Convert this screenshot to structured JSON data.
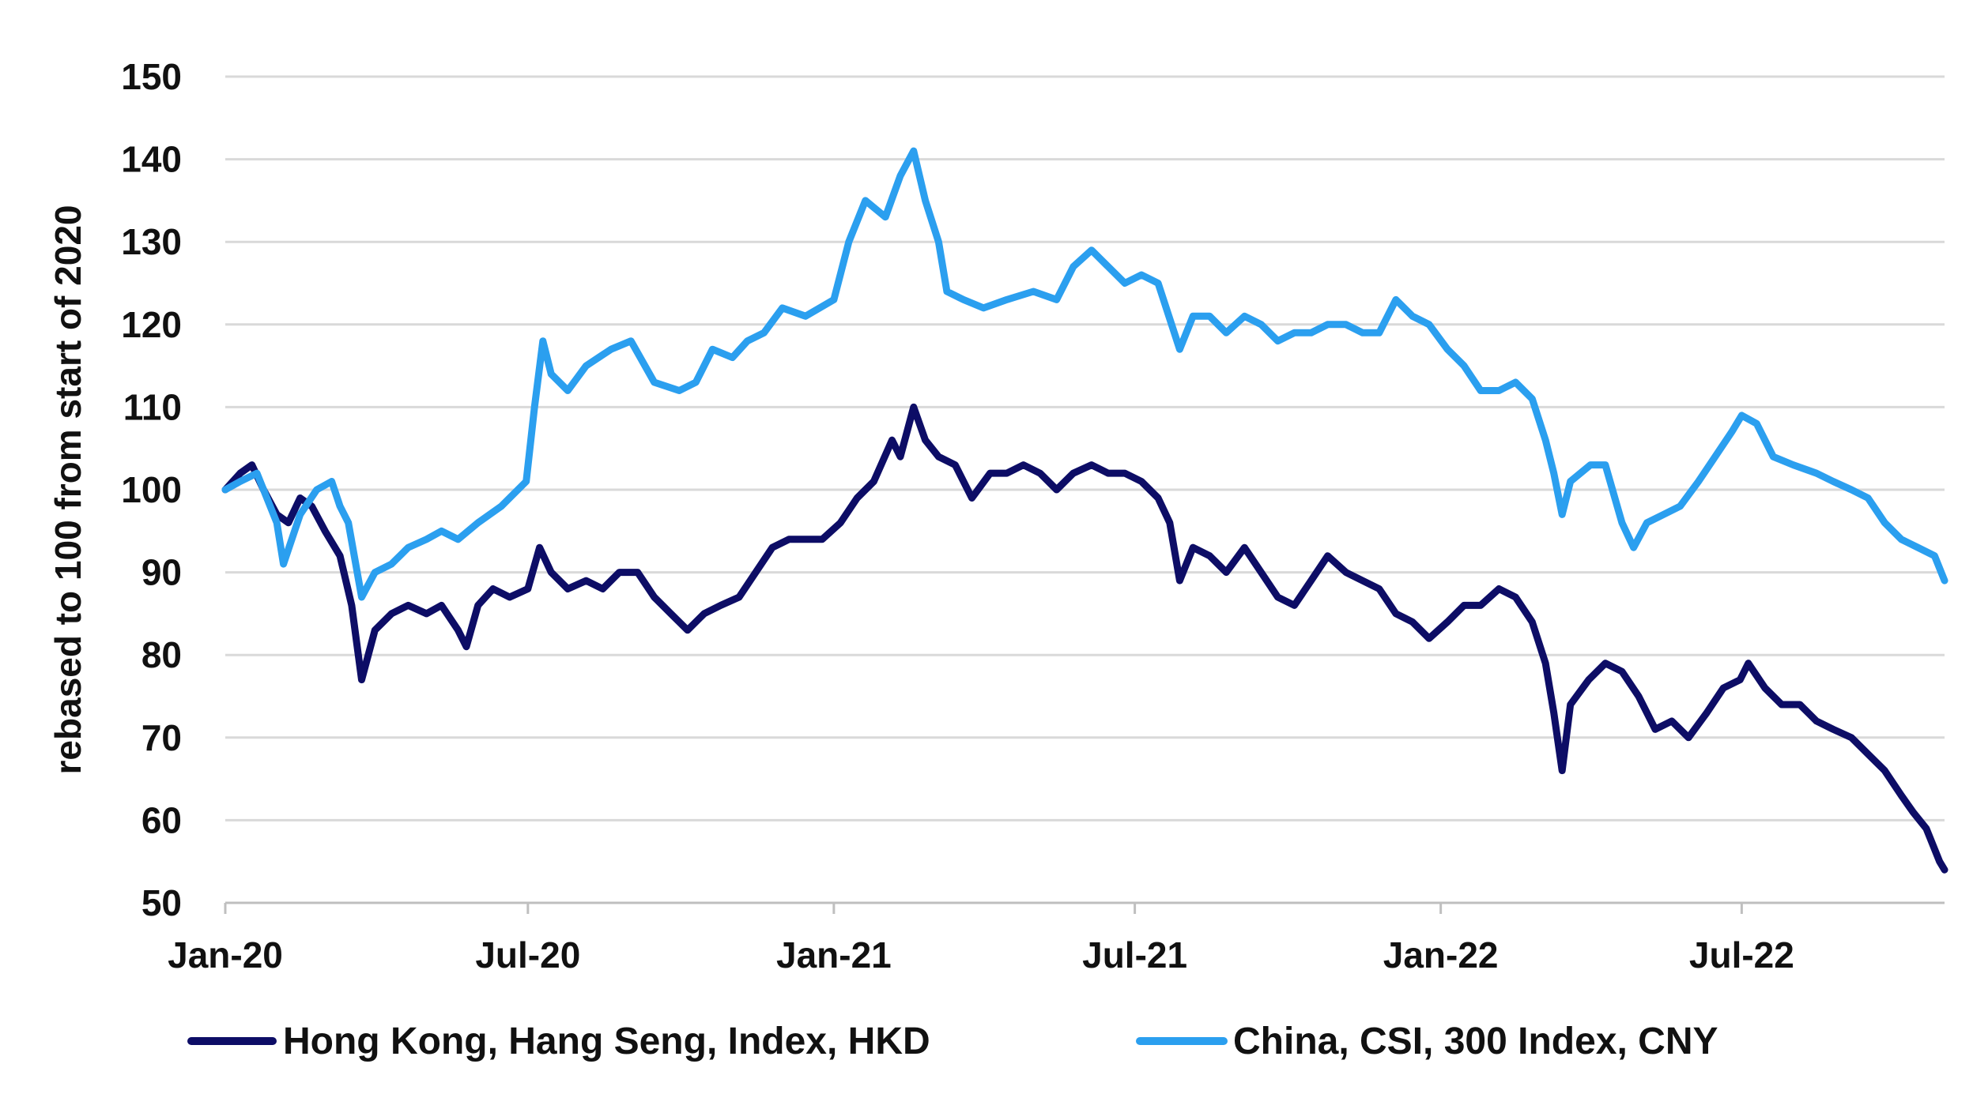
{
  "chart_data": {
    "type": "line",
    "ylabel": "rebased to 100 from start of 2020",
    "ylim": [
      50,
      150
    ],
    "yticks": [
      "50",
      "60",
      "70",
      "80",
      "90",
      "100",
      "110",
      "120",
      "130",
      "140",
      "150"
    ],
    "xlim": [
      "2020-01-01",
      "2022-10-31"
    ],
    "xticks": [
      {
        "date": "2020-01-01",
        "label": "Jan-20"
      },
      {
        "date": "2020-07-01",
        "label": "Jul-20"
      },
      {
        "date": "2021-01-01",
        "label": "Jan-21"
      },
      {
        "date": "2021-07-01",
        "label": "Jul-21"
      },
      {
        "date": "2022-01-01",
        "label": "Jan-22"
      },
      {
        "date": "2022-07-01",
        "label": "Jul-22"
      }
    ],
    "grid": true,
    "legend": "bottom",
    "series": [
      {
        "name": "Hong Kong, Hang Seng, Index, HKD",
        "color": "#0d0d66",
        "points": [
          [
            "2020-01-01",
            100
          ],
          [
            "2020-01-10",
            102
          ],
          [
            "2020-01-17",
            103
          ],
          [
            "2020-01-24",
            100
          ],
          [
            "2020-02-01",
            97
          ],
          [
            "2020-02-08",
            96
          ],
          [
            "2020-02-15",
            99
          ],
          [
            "2020-02-22",
            98
          ],
          [
            "2020-03-01",
            95
          ],
          [
            "2020-03-10",
            92
          ],
          [
            "2020-03-17",
            86
          ],
          [
            "2020-03-23",
            77
          ],
          [
            "2020-03-31",
            83
          ],
          [
            "2020-04-10",
            85
          ],
          [
            "2020-04-20",
            86
          ],
          [
            "2020-05-01",
            85
          ],
          [
            "2020-05-10",
            86
          ],
          [
            "2020-05-20",
            83
          ],
          [
            "2020-05-25",
            81
          ],
          [
            "2020-06-01",
            86
          ],
          [
            "2020-06-10",
            88
          ],
          [
            "2020-06-20",
            87
          ],
          [
            "2020-07-01",
            88
          ],
          [
            "2020-07-08",
            93
          ],
          [
            "2020-07-15",
            90
          ],
          [
            "2020-07-25",
            88
          ],
          [
            "2020-08-05",
            89
          ],
          [
            "2020-08-15",
            88
          ],
          [
            "2020-08-25",
            90
          ],
          [
            "2020-09-05",
            90
          ],
          [
            "2020-09-15",
            87
          ],
          [
            "2020-09-25",
            85
          ],
          [
            "2020-10-05",
            83
          ],
          [
            "2020-10-15",
            85
          ],
          [
            "2020-10-25",
            86
          ],
          [
            "2020-11-05",
            87
          ],
          [
            "2020-11-15",
            90
          ],
          [
            "2020-11-25",
            93
          ],
          [
            "2020-12-05",
            94
          ],
          [
            "2020-12-15",
            94
          ],
          [
            "2020-12-25",
            94
          ],
          [
            "2021-01-05",
            96
          ],
          [
            "2021-01-15",
            99
          ],
          [
            "2021-01-25",
            101
          ],
          [
            "2021-02-05",
            106
          ],
          [
            "2021-02-10",
            104
          ],
          [
            "2021-02-18",
            110
          ],
          [
            "2021-02-25",
            106
          ],
          [
            "2021-03-05",
            104
          ],
          [
            "2021-03-15",
            103
          ],
          [
            "2021-03-25",
            99
          ],
          [
            "2021-04-05",
            102
          ],
          [
            "2021-04-15",
            102
          ],
          [
            "2021-04-25",
            103
          ],
          [
            "2021-05-05",
            102
          ],
          [
            "2021-05-15",
            100
          ],
          [
            "2021-05-25",
            102
          ],
          [
            "2021-06-05",
            103
          ],
          [
            "2021-06-15",
            102
          ],
          [
            "2021-06-25",
            102
          ],
          [
            "2021-07-05",
            101
          ],
          [
            "2021-07-15",
            99
          ],
          [
            "2021-07-22",
            96
          ],
          [
            "2021-07-28",
            89
          ],
          [
            "2021-08-05",
            93
          ],
          [
            "2021-08-15",
            92
          ],
          [
            "2021-08-25",
            90
          ],
          [
            "2021-09-05",
            93
          ],
          [
            "2021-09-15",
            90
          ],
          [
            "2021-09-25",
            87
          ],
          [
            "2021-10-05",
            86
          ],
          [
            "2021-10-15",
            89
          ],
          [
            "2021-10-25",
            92
          ],
          [
            "2021-11-05",
            90
          ],
          [
            "2021-11-15",
            89
          ],
          [
            "2021-11-25",
            88
          ],
          [
            "2021-12-05",
            85
          ],
          [
            "2021-12-15",
            84
          ],
          [
            "2021-12-25",
            82
          ],
          [
            "2022-01-05",
            84
          ],
          [
            "2022-01-15",
            86
          ],
          [
            "2022-01-25",
            86
          ],
          [
            "2022-02-05",
            88
          ],
          [
            "2022-02-15",
            87
          ],
          [
            "2022-02-25",
            84
          ],
          [
            "2022-03-05",
            79
          ],
          [
            "2022-03-10",
            73
          ],
          [
            "2022-03-15",
            66
          ],
          [
            "2022-03-20",
            74
          ],
          [
            "2022-03-31",
            77
          ],
          [
            "2022-04-10",
            79
          ],
          [
            "2022-04-20",
            78
          ],
          [
            "2022-04-30",
            75
          ],
          [
            "2022-05-10",
            71
          ],
          [
            "2022-05-20",
            72
          ],
          [
            "2022-05-30",
            70
          ],
          [
            "2022-06-10",
            73
          ],
          [
            "2022-06-20",
            76
          ],
          [
            "2022-06-30",
            77
          ],
          [
            "2022-07-05",
            79
          ],
          [
            "2022-07-15",
            76
          ],
          [
            "2022-07-25",
            74
          ],
          [
            "2022-08-05",
            74
          ],
          [
            "2022-08-15",
            72
          ],
          [
            "2022-08-25",
            71
          ],
          [
            "2022-09-05",
            70
          ],
          [
            "2022-09-15",
            68
          ],
          [
            "2022-09-25",
            66
          ],
          [
            "2022-10-05",
            63
          ],
          [
            "2022-10-12",
            61
          ],
          [
            "2022-10-20",
            59
          ],
          [
            "2022-10-28",
            55
          ],
          [
            "2022-10-31",
            54
          ]
        ]
      },
      {
        "name": "China, CSI, 300 Index, CNY",
        "color": "#2b9fef",
        "points": [
          [
            "2020-01-01",
            100
          ],
          [
            "2020-01-10",
            101
          ],
          [
            "2020-01-20",
            102
          ],
          [
            "2020-02-01",
            96
          ],
          [
            "2020-02-05",
            91
          ],
          [
            "2020-02-15",
            97
          ],
          [
            "2020-02-25",
            100
          ],
          [
            "2020-03-05",
            101
          ],
          [
            "2020-03-10",
            98
          ],
          [
            "2020-03-15",
            96
          ],
          [
            "2020-03-23",
            87
          ],
          [
            "2020-03-31",
            90
          ],
          [
            "2020-04-10",
            91
          ],
          [
            "2020-04-20",
            93
          ],
          [
            "2020-05-01",
            94
          ],
          [
            "2020-05-10",
            95
          ],
          [
            "2020-05-20",
            94
          ],
          [
            "2020-06-01",
            96
          ],
          [
            "2020-06-15",
            98
          ],
          [
            "2020-06-30",
            101
          ],
          [
            "2020-07-05",
            110
          ],
          [
            "2020-07-10",
            118
          ],
          [
            "2020-07-15",
            114
          ],
          [
            "2020-07-25",
            112
          ],
          [
            "2020-08-05",
            115
          ],
          [
            "2020-08-20",
            117
          ],
          [
            "2020-09-01",
            118
          ],
          [
            "2020-09-15",
            113
          ],
          [
            "2020-09-30",
            112
          ],
          [
            "2020-10-10",
            113
          ],
          [
            "2020-10-20",
            117
          ],
          [
            "2020-11-01",
            116
          ],
          [
            "2020-11-10",
            118
          ],
          [
            "2020-11-20",
            119
          ],
          [
            "2020-12-01",
            122
          ],
          [
            "2020-12-15",
            121
          ],
          [
            "2021-01-01",
            123
          ],
          [
            "2021-01-10",
            130
          ],
          [
            "2021-01-20",
            135
          ],
          [
            "2021-02-01",
            133
          ],
          [
            "2021-02-10",
            138
          ],
          [
            "2021-02-18",
            141
          ],
          [
            "2021-02-25",
            135
          ],
          [
            "2021-03-05",
            130
          ],
          [
            "2021-03-10",
            124
          ],
          [
            "2021-03-20",
            123
          ],
          [
            "2021-04-01",
            122
          ],
          [
            "2021-04-15",
            123
          ],
          [
            "2021-05-01",
            124
          ],
          [
            "2021-05-15",
            123
          ],
          [
            "2021-05-25",
            127
          ],
          [
            "2021-06-05",
            129
          ],
          [
            "2021-06-15",
            127
          ],
          [
            "2021-06-25",
            125
          ],
          [
            "2021-07-05",
            126
          ],
          [
            "2021-07-15",
            125
          ],
          [
            "2021-07-28",
            117
          ],
          [
            "2021-08-05",
            121
          ],
          [
            "2021-08-15",
            121
          ],
          [
            "2021-08-25",
            119
          ],
          [
            "2021-09-05",
            121
          ],
          [
            "2021-09-15",
            120
          ],
          [
            "2021-09-25",
            118
          ],
          [
            "2021-10-05",
            119
          ],
          [
            "2021-10-15",
            119
          ],
          [
            "2021-10-25",
            120
          ],
          [
            "2021-11-05",
            120
          ],
          [
            "2021-11-15",
            119
          ],
          [
            "2021-11-25",
            119
          ],
          [
            "2021-12-05",
            123
          ],
          [
            "2021-12-15",
            121
          ],
          [
            "2021-12-25",
            120
          ],
          [
            "2022-01-05",
            117
          ],
          [
            "2022-01-15",
            115
          ],
          [
            "2022-01-25",
            112
          ],
          [
            "2022-02-05",
            112
          ],
          [
            "2022-02-15",
            113
          ],
          [
            "2022-02-25",
            111
          ],
          [
            "2022-03-05",
            106
          ],
          [
            "2022-03-10",
            102
          ],
          [
            "2022-03-15",
            97
          ],
          [
            "2022-03-20",
            101
          ],
          [
            "2022-04-01",
            103
          ],
          [
            "2022-04-10",
            103
          ],
          [
            "2022-04-20",
            96
          ],
          [
            "2022-04-27",
            93
          ],
          [
            "2022-05-05",
            96
          ],
          [
            "2022-05-15",
            97
          ],
          [
            "2022-05-25",
            98
          ],
          [
            "2022-06-05",
            101
          ],
          [
            "2022-06-15",
            104
          ],
          [
            "2022-06-25",
            107
          ],
          [
            "2022-07-01",
            109
          ],
          [
            "2022-07-10",
            108
          ],
          [
            "2022-07-20",
            104
          ],
          [
            "2022-08-01",
            103
          ],
          [
            "2022-08-15",
            102
          ],
          [
            "2022-08-25",
            101
          ],
          [
            "2022-09-05",
            100
          ],
          [
            "2022-09-15",
            99
          ],
          [
            "2022-09-25",
            96
          ],
          [
            "2022-10-05",
            94
          ],
          [
            "2022-10-15",
            93
          ],
          [
            "2022-10-25",
            92
          ],
          [
            "2022-10-31",
            89
          ]
        ]
      }
    ]
  }
}
